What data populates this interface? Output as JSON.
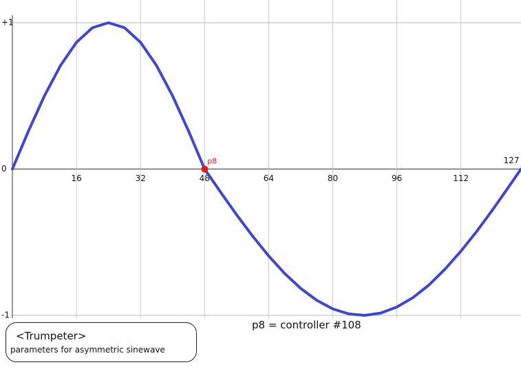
{
  "chart_data": {
    "type": "line",
    "x": [
      0,
      4,
      8,
      12,
      16,
      20,
      24,
      28,
      32,
      36,
      40,
      44,
      48,
      52,
      56,
      60,
      64,
      68,
      72,
      76,
      80,
      84,
      88,
      92,
      96,
      100,
      104,
      108,
      112,
      116,
      120,
      124,
      127
    ],
    "series": [
      {
        "color": "#3f48cc",
        "values": [
          0,
          0.259,
          0.5,
          0.707,
          0.866,
          0.966,
          1,
          0.966,
          0.866,
          0.707,
          0.5,
          0.259,
          0,
          -0.158,
          -0.313,
          -0.459,
          -0.594,
          -0.714,
          -0.816,
          -0.897,
          -0.956,
          -0.99,
          -1,
          -0.984,
          -0.943,
          -0.879,
          -0.793,
          -0.685,
          -0.561,
          -0.424,
          -0.275,
          -0.119,
          0
        ]
      }
    ],
    "xlim": [
      0,
      127
    ],
    "xticks": [
      16,
      32,
      48,
      64,
      80,
      96,
      112,
      127
    ],
    "ylim": [
      -1,
      1
    ],
    "yticks": [
      {
        "value": 1,
        "label": "+1"
      },
      0,
      -1
    ],
    "grid": true,
    "marker": {
      "x": 48,
      "y": 0,
      "label": "p8",
      "color": "#e8161b"
    },
    "annotation": "p8 = controller #108",
    "box": {
      "title": "<Trumpeter>",
      "subtitle": "parameters for asymmetric sinewave"
    }
  }
}
